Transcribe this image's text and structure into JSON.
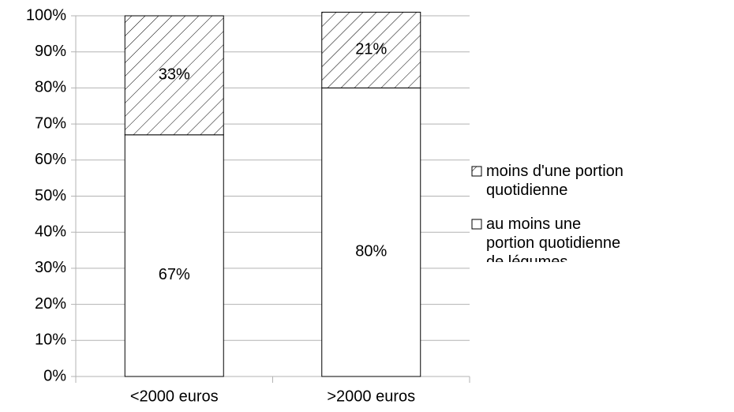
{
  "chart_data": {
    "type": "stacked_bar",
    "categories": [
      "<2000 euros",
      ">2000 euros"
    ],
    "series": [
      {
        "name": "au moins une portion quotidienne de légumes",
        "color": "#ffffff",
        "values": [
          67,
          80
        ],
        "value_labels": [
          "67%",
          "80%"
        ]
      },
      {
        "name": "moins d'une portion quotidienne",
        "color": "#ffffff",
        "pattern": "hatch",
        "values": [
          33,
          21
        ],
        "value_labels": [
          "33%",
          "21%"
        ]
      }
    ],
    "ylim": [
      0,
      100
    ],
    "yticks": [
      {
        "value": 0,
        "label": "0%"
      },
      {
        "value": 10,
        "label": "10%"
      },
      {
        "value": 20,
        "label": "20%"
      },
      {
        "value": 30,
        "label": "30%"
      },
      {
        "value": 40,
        "label": "40%"
      },
      {
        "value": 50,
        "label": "50%"
      },
      {
        "value": 60,
        "label": "60%"
      },
      {
        "value": 70,
        "label": "70%"
      },
      {
        "value": 80,
        "label": "80%"
      },
      {
        "value": 90,
        "label": "90%"
      },
      {
        "value": 100,
        "label": "100%"
      }
    ],
    "grid": true,
    "legend": "right"
  }
}
